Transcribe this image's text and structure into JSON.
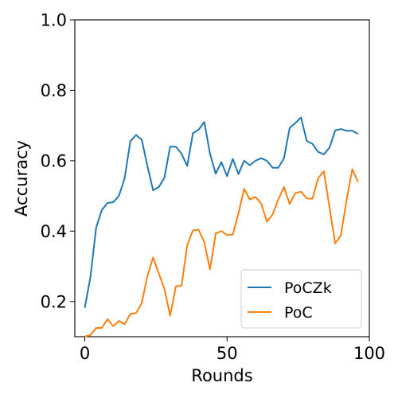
{
  "chart_data": {
    "type": "line",
    "title": "",
    "xlabel": "Rounds",
    "ylabel": "Accuracy",
    "xlim": [
      -3.5,
      100
    ],
    "ylim": [
      0.1,
      1.0
    ],
    "xticks": [
      0,
      50,
      100
    ],
    "xtick_labels": [
      "0",
      "50",
      "100"
    ],
    "yticks": [
      0.2,
      0.4,
      0.6,
      0.8,
      1.0
    ],
    "ytick_labels": [
      "0.2",
      "0.4",
      "0.6",
      "0.8",
      "1.0"
    ],
    "grid": false,
    "legend_position": "lower-right",
    "series": [
      {
        "name": "PoCZk",
        "color": "#1f77b4",
        "x": [
          0,
          2,
          4,
          6,
          8,
          10,
          12,
          14,
          16,
          18,
          20,
          22,
          24,
          26,
          28,
          30,
          32,
          34,
          36,
          38,
          40,
          42,
          44,
          46,
          48,
          50,
          52,
          54,
          56,
          58,
          60,
          62,
          64,
          66,
          68,
          70,
          72,
          74,
          76,
          78,
          80,
          82,
          84,
          86,
          88,
          90,
          92,
          94,
          96
        ],
        "y": [
          0.182,
          0.27,
          0.41,
          0.46,
          0.48,
          0.482,
          0.5,
          0.55,
          0.655,
          0.673,
          0.66,
          0.585,
          0.516,
          0.525,
          0.552,
          0.64,
          0.64,
          0.62,
          0.585,
          0.678,
          0.688,
          0.71,
          0.62,
          0.563,
          0.596,
          0.556,
          0.605,
          0.562,
          0.6,
          0.587,
          0.6,
          0.607,
          0.6,
          0.58,
          0.58,
          0.607,
          0.693,
          0.707,
          0.723,
          0.656,
          0.648,
          0.625,
          0.618,
          0.637,
          0.686,
          0.69,
          0.685,
          0.685,
          0.676
        ]
      },
      {
        "name": "PoC",
        "color": "#ff7f0e",
        "x": [
          0,
          2,
          4,
          6,
          8,
          10,
          12,
          14,
          16,
          18,
          20,
          22,
          24,
          26,
          28,
          30,
          32,
          34,
          36,
          38,
          40,
          42,
          44,
          46,
          48,
          50,
          52,
          54,
          56,
          58,
          60,
          62,
          64,
          66,
          68,
          70,
          72,
          74,
          76,
          78,
          80,
          82,
          84,
          86,
          88,
          90,
          92,
          94,
          96
        ],
        "y": [
          0.1,
          0.105,
          0.125,
          0.125,
          0.15,
          0.13,
          0.145,
          0.135,
          0.165,
          0.167,
          0.195,
          0.272,
          0.325,
          0.28,
          0.235,
          0.16,
          0.243,
          0.245,
          0.36,
          0.402,
          0.404,
          0.368,
          0.291,
          0.393,
          0.4,
          0.389,
          0.39,
          0.45,
          0.52,
          0.49,
          0.497,
          0.478,
          0.427,
          0.447,
          0.49,
          0.525,
          0.477,
          0.508,
          0.512,
          0.493,
          0.492,
          0.55,
          0.57,
          0.468,
          0.365,
          0.388,
          0.488,
          0.576,
          0.54
        ]
      }
    ]
  }
}
